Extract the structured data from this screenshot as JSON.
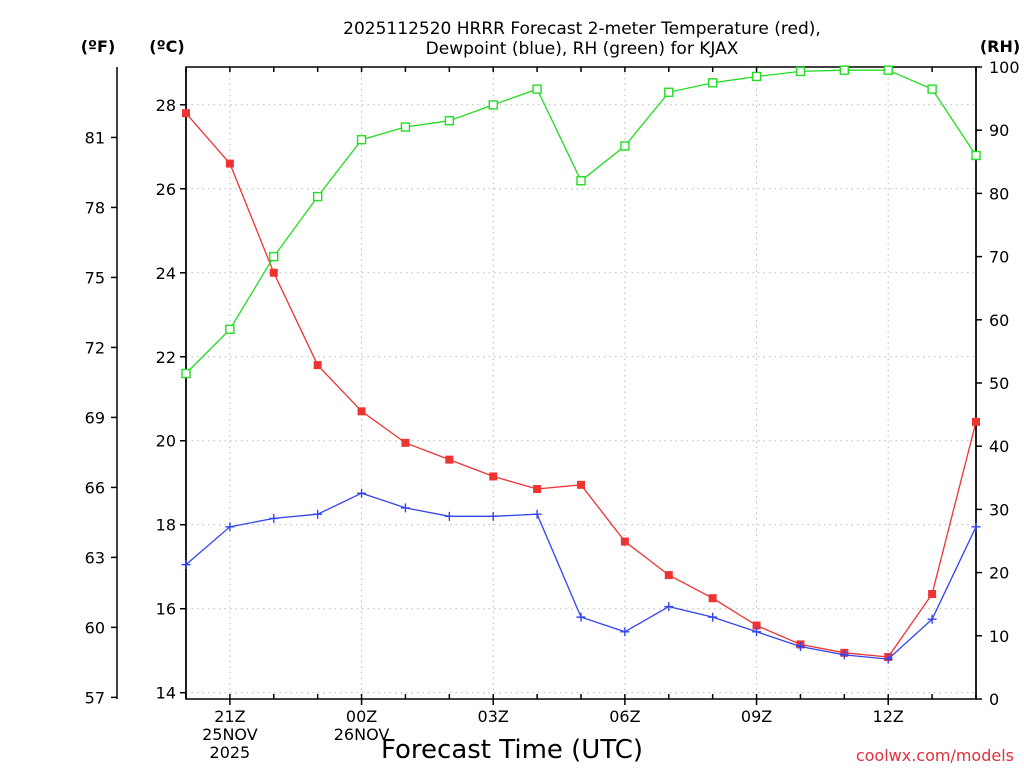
{
  "chart_data": {
    "type": "line",
    "title_line1": "2025112520 HRRR Forecast 2-meter Temperature (red),",
    "title_line2": "Dewpoint (blue), RH (green) for KJAX",
    "xlabel": "Forecast Time (UTC)",
    "credit": "coolwx.com/models",
    "units": {
      "fahrenheit": "(ºF)",
      "celsius": "(ºC)",
      "rh": "(RH)"
    },
    "x_hours": [
      20,
      21,
      22,
      23,
      24,
      25,
      26,
      27,
      28,
      29,
      30,
      31,
      32,
      33,
      34,
      35,
      36,
      37,
      38
    ],
    "xlim": [
      20,
      38
    ],
    "x_ticks": [
      {
        "hour": 21,
        "lines": [
          "21Z",
          "25NOV",
          "2025"
        ]
      },
      {
        "hour": 24,
        "lines": [
          "00Z",
          "26NOV"
        ]
      },
      {
        "hour": 27,
        "lines": [
          "03Z"
        ]
      },
      {
        "hour": 30,
        "lines": [
          "06Z"
        ]
      },
      {
        "hour": 33,
        "lines": [
          "09Z"
        ]
      },
      {
        "hour": 36,
        "lines": [
          "12Z"
        ]
      }
    ],
    "celsius_axis": {
      "ylim": [
        13.85,
        28.9
      ],
      "ticks": [
        "14",
        "16",
        "18",
        "20",
        "22",
        "24",
        "26",
        "28"
      ]
    },
    "fahrenheit_axis": {
      "ticks": [
        "57",
        "60",
        "63",
        "66",
        "69",
        "72",
        "75",
        "78",
        "81"
      ]
    },
    "rh_axis": {
      "ylim": [
        0,
        100
      ],
      "ticks": [
        "0",
        "10",
        "20",
        "30",
        "40",
        "50",
        "60",
        "70",
        "80",
        "90",
        "100"
      ]
    },
    "series": [
      {
        "name": "2-meter Temperature",
        "axis": "celsius",
        "color": "#ee3333",
        "marker": "filled-square",
        "values": [
          27.8,
          26.6,
          24.0,
          21.8,
          20.7,
          19.95,
          19.55,
          19.15,
          18.85,
          18.95,
          17.6,
          16.8,
          16.25,
          15.6,
          15.15,
          14.95,
          14.85,
          16.35,
          20.45
        ]
      },
      {
        "name": "Dewpoint",
        "axis": "celsius",
        "color": "#3344ee",
        "marker": "plus",
        "values": [
          17.05,
          17.95,
          18.15,
          18.25,
          18.75,
          18.4,
          18.2,
          18.2,
          18.25,
          15.8,
          15.45,
          16.05,
          15.8,
          15.45,
          15.1,
          14.9,
          14.8,
          15.75,
          17.95
        ]
      },
      {
        "name": "RH",
        "axis": "rh",
        "color": "#22dd22",
        "marker": "open-square",
        "values": [
          51.5,
          58.5,
          70.0,
          79.5,
          88.5,
          90.5,
          91.5,
          94.0,
          96.5,
          82.0,
          87.5,
          96.0,
          97.5,
          98.5,
          99.3,
          99.5,
          99.5,
          96.5,
          86.0
        ]
      }
    ]
  }
}
